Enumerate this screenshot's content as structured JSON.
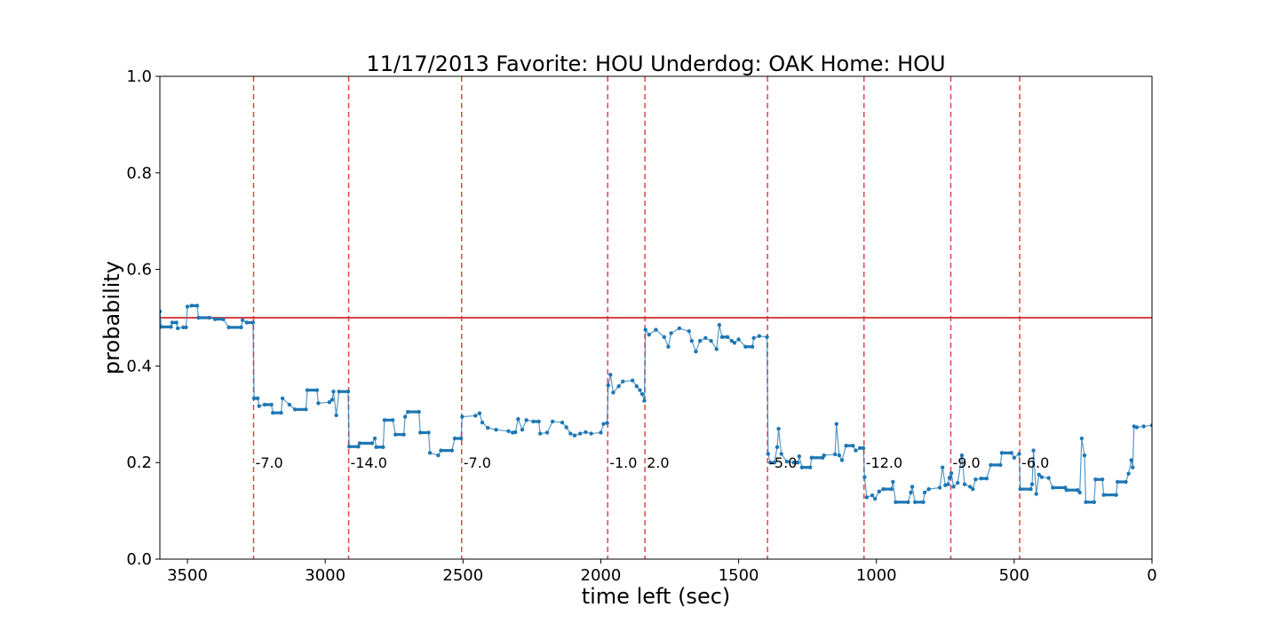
{
  "chart_data": {
    "type": "line",
    "title": "11/17/2013 Favorite: HOU Underdog: OAK Home: HOU",
    "xlabel": "time left (sec)",
    "ylabel": "probability",
    "xlim": [
      3600,
      0
    ],
    "ylim": [
      0.0,
      1.0
    ],
    "x_ticks": [
      3500,
      3000,
      2500,
      2000,
      1500,
      1000,
      500,
      0
    ],
    "y_ticks": [
      0.0,
      0.2,
      0.4,
      0.6,
      0.8,
      1.0
    ],
    "x_tick_labels": [
      "3500",
      "3000",
      "2500",
      "2000",
      "1500",
      "1000",
      "500",
      "0"
    ],
    "y_tick_labels": [
      "0.0",
      "0.2",
      "0.4",
      "0.6",
      "0.8",
      "1.0"
    ],
    "reference_line": {
      "y": 0.5,
      "color": "#d62728"
    },
    "series_color": "#1f77b4",
    "score_changes": [
      {
        "x": 3260,
        "label": "-7.0"
      },
      {
        "x": 2915,
        "label": "-14.0"
      },
      {
        "x": 2505,
        "label": "-7.0"
      },
      {
        "x": 1975,
        "label": "-1.0"
      },
      {
        "x": 1840,
        "label": "2.0"
      },
      {
        "x": 1395,
        "label": "-5.0"
      },
      {
        "x": 1045,
        "label": "-12.0"
      },
      {
        "x": 730,
        "label": "-9.0"
      },
      {
        "x": 480,
        "label": "-6.0"
      }
    ],
    "series": [
      {
        "points": [
          [
            3600,
            0.513
          ],
          [
            3595,
            0.481
          ],
          [
            3560,
            0.481
          ],
          [
            3555,
            0.49
          ],
          [
            3540,
            0.49
          ],
          [
            3535,
            0.478
          ],
          [
            3515,
            0.48
          ],
          [
            3505,
            0.48
          ],
          [
            3500,
            0.523
          ],
          [
            3485,
            0.525
          ],
          [
            3465,
            0.525
          ],
          [
            3460,
            0.5
          ],
          [
            3420,
            0.5
          ],
          [
            3400,
            0.497
          ],
          [
            3370,
            0.497
          ],
          [
            3350,
            0.48
          ],
          [
            3305,
            0.48
          ],
          [
            3300,
            0.495
          ],
          [
            3285,
            0.49
          ],
          [
            3262,
            0.49
          ],
          [
            3258,
            0.333
          ],
          [
            3245,
            0.333
          ],
          [
            3240,
            0.317
          ],
          [
            3220,
            0.32
          ],
          [
            3195,
            0.32
          ],
          [
            3190,
            0.303
          ],
          [
            3160,
            0.303
          ],
          [
            3155,
            0.333
          ],
          [
            3130,
            0.32
          ],
          [
            3110,
            0.31
          ],
          [
            3070,
            0.31
          ],
          [
            3065,
            0.35
          ],
          [
            3030,
            0.35
          ],
          [
            3025,
            0.323
          ],
          [
            2985,
            0.325
          ],
          [
            2975,
            0.33
          ],
          [
            2970,
            0.347
          ],
          [
            2960,
            0.298
          ],
          [
            2950,
            0.347
          ],
          [
            2917,
            0.347
          ],
          [
            2913,
            0.233
          ],
          [
            2880,
            0.233
          ],
          [
            2875,
            0.24
          ],
          [
            2830,
            0.24
          ],
          [
            2820,
            0.25
          ],
          [
            2815,
            0.232
          ],
          [
            2790,
            0.232
          ],
          [
            2785,
            0.288
          ],
          [
            2755,
            0.288
          ],
          [
            2745,
            0.258
          ],
          [
            2715,
            0.258
          ],
          [
            2710,
            0.295
          ],
          [
            2700,
            0.305
          ],
          [
            2660,
            0.305
          ],
          [
            2655,
            0.262
          ],
          [
            2625,
            0.262
          ],
          [
            2620,
            0.22
          ],
          [
            2590,
            0.215
          ],
          [
            2580,
            0.225
          ],
          [
            2540,
            0.225
          ],
          [
            2530,
            0.25
          ],
          [
            2507,
            0.25
          ],
          [
            2503,
            0.295
          ],
          [
            2455,
            0.297
          ],
          [
            2440,
            0.302
          ],
          [
            2430,
            0.283
          ],
          [
            2410,
            0.272
          ],
          [
            2380,
            0.268
          ],
          [
            2335,
            0.265
          ],
          [
            2320,
            0.262
          ],
          [
            2310,
            0.263
          ],
          [
            2300,
            0.29
          ],
          [
            2285,
            0.268
          ],
          [
            2270,
            0.288
          ],
          [
            2245,
            0.285
          ],
          [
            2225,
            0.285
          ],
          [
            2220,
            0.26
          ],
          [
            2195,
            0.262
          ],
          [
            2175,
            0.285
          ],
          [
            2140,
            0.283
          ],
          [
            2125,
            0.273
          ],
          [
            2110,
            0.26
          ],
          [
            2095,
            0.256
          ],
          [
            2075,
            0.26
          ],
          [
            2055,
            0.263
          ],
          [
            2035,
            0.26
          ],
          [
            2000,
            0.262
          ],
          [
            1990,
            0.28
          ],
          [
            1977,
            0.282
          ],
          [
            1973,
            0.36
          ],
          [
            1965,
            0.382
          ],
          [
            1955,
            0.345
          ],
          [
            1935,
            0.358
          ],
          [
            1920,
            0.368
          ],
          [
            1885,
            0.37
          ],
          [
            1870,
            0.358
          ],
          [
            1858,
            0.35
          ],
          [
            1850,
            0.342
          ],
          [
            1842,
            0.328
          ],
          [
            1838,
            0.475
          ],
          [
            1825,
            0.465
          ],
          [
            1800,
            0.475
          ],
          [
            1770,
            0.46
          ],
          [
            1755,
            0.44
          ],
          [
            1745,
            0.468
          ],
          [
            1715,
            0.478
          ],
          [
            1680,
            0.472
          ],
          [
            1670,
            0.452
          ],
          [
            1655,
            0.43
          ],
          [
            1640,
            0.452
          ],
          [
            1620,
            0.458
          ],
          [
            1600,
            0.452
          ],
          [
            1580,
            0.435
          ],
          [
            1570,
            0.485
          ],
          [
            1560,
            0.46
          ],
          [
            1540,
            0.46
          ],
          [
            1525,
            0.452
          ],
          [
            1515,
            0.448
          ],
          [
            1500,
            0.455
          ],
          [
            1475,
            0.44
          ],
          [
            1450,
            0.44
          ],
          [
            1445,
            0.458
          ],
          [
            1425,
            0.462
          ],
          [
            1397,
            0.46
          ],
          [
            1393,
            0.218
          ],
          [
            1385,
            0.2
          ],
          [
            1370,
            0.2
          ],
          [
            1360,
            0.232
          ],
          [
            1355,
            0.27
          ],
          [
            1345,
            0.218
          ],
          [
            1325,
            0.202
          ],
          [
            1300,
            0.2
          ],
          [
            1285,
            0.2
          ],
          [
            1280,
            0.213
          ],
          [
            1270,
            0.19
          ],
          [
            1240,
            0.19
          ],
          [
            1235,
            0.21
          ],
          [
            1195,
            0.21
          ],
          [
            1190,
            0.215
          ],
          [
            1150,
            0.217
          ],
          [
            1145,
            0.28
          ],
          [
            1135,
            0.215
          ],
          [
            1125,
            0.205
          ],
          [
            1110,
            0.235
          ],
          [
            1085,
            0.235
          ],
          [
            1075,
            0.225
          ],
          [
            1060,
            0.23
          ],
          [
            1047,
            0.23
          ],
          [
            1043,
            0.17
          ],
          [
            1035,
            0.128
          ],
          [
            1015,
            0.132
          ],
          [
            1005,
            0.125
          ],
          [
            990,
            0.14
          ],
          [
            975,
            0.145
          ],
          [
            945,
            0.145
          ],
          [
            940,
            0.16
          ],
          [
            930,
            0.118
          ],
          [
            885,
            0.118
          ],
          [
            875,
            0.138
          ],
          [
            870,
            0.15
          ],
          [
            860,
            0.118
          ],
          [
            830,
            0.118
          ],
          [
            825,
            0.138
          ],
          [
            810,
            0.145
          ],
          [
            770,
            0.148
          ],
          [
            760,
            0.19
          ],
          [
            750,
            0.153
          ],
          [
            740,
            0.155
          ],
          [
            735,
            0.168
          ],
          [
            732,
            0.17
          ],
          [
            728,
            0.178
          ],
          [
            720,
            0.15
          ],
          [
            705,
            0.158
          ],
          [
            690,
            0.215
          ],
          [
            680,
            0.155
          ],
          [
            660,
            0.15
          ],
          [
            650,
            0.145
          ],
          [
            640,
            0.165
          ],
          [
            620,
            0.167
          ],
          [
            600,
            0.167
          ],
          [
            585,
            0.195
          ],
          [
            550,
            0.195
          ],
          [
            545,
            0.22
          ],
          [
            510,
            0.22
          ],
          [
            500,
            0.21
          ],
          [
            482,
            0.218
          ],
          [
            478,
            0.145
          ],
          [
            440,
            0.145
          ],
          [
            435,
            0.155
          ],
          [
            430,
            0.225
          ],
          [
            420,
            0.135
          ],
          [
            410,
            0.175
          ],
          [
            400,
            0.17
          ],
          [
            375,
            0.168
          ],
          [
            360,
            0.148
          ],
          [
            315,
            0.148
          ],
          [
            310,
            0.143
          ],
          [
            270,
            0.143
          ],
          [
            262,
            0.138
          ],
          [
            255,
            0.25
          ],
          [
            245,
            0.215
          ],
          [
            240,
            0.118
          ],
          [
            210,
            0.118
          ],
          [
            205,
            0.165
          ],
          [
            180,
            0.165
          ],
          [
            175,
            0.133
          ],
          [
            130,
            0.133
          ],
          [
            125,
            0.16
          ],
          [
            95,
            0.16
          ],
          [
            85,
            0.177
          ],
          [
            75,
            0.205
          ],
          [
            70,
            0.19
          ],
          [
            65,
            0.275
          ],
          [
            55,
            0.273
          ],
          [
            30,
            0.275
          ],
          [
            0,
            0.277
          ]
        ]
      }
    ]
  }
}
